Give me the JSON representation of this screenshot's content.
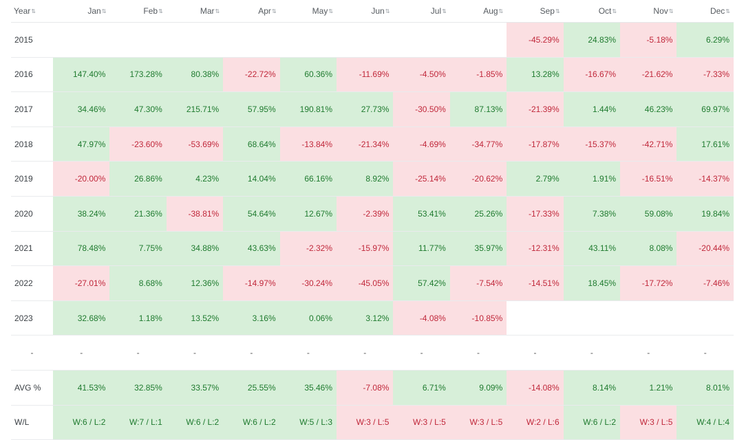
{
  "headers": [
    "Year",
    "Jan",
    "Feb",
    "Mar",
    "Apr",
    "May",
    "Jun",
    "Jul",
    "Aug",
    "Sep",
    "Oct",
    "Nov",
    "Dec"
  ],
  "sort_icon": "sort-icon",
  "colors": {
    "positive_bg": "#d7efd9",
    "positive_text": "#1e7a2e",
    "negative_bg": "#fbdfe2",
    "negative_text": "#c0273a"
  },
  "rows": [
    {
      "label": "2015",
      "cells": [
        "",
        "",
        "",
        "",
        "",
        "",
        "",
        "",
        "-45.29%",
        "24.83%",
        "-5.18%",
        "6.29%"
      ]
    },
    {
      "label": "2016",
      "cells": [
        "147.40%",
        "173.28%",
        "80.38%",
        "-22.72%",
        "60.36%",
        "-11.69%",
        "-4.50%",
        "-1.85%",
        "13.28%",
        "-16.67%",
        "-21.62%",
        "-7.33%"
      ]
    },
    {
      "label": "2017",
      "cells": [
        "34.46%",
        "47.30%",
        "215.71%",
        "57.95%",
        "190.81%",
        "27.73%",
        "-30.50%",
        "87.13%",
        "-21.39%",
        "1.44%",
        "46.23%",
        "69.97%"
      ]
    },
    {
      "label": "2018",
      "cells": [
        "47.97%",
        "-23.60%",
        "-53.69%",
        "68.64%",
        "-13.84%",
        "-21.34%",
        "-4.69%",
        "-34.77%",
        "-17.87%",
        "-15.37%",
        "-42.71%",
        "17.61%"
      ]
    },
    {
      "label": "2019",
      "cells": [
        "-20.00%",
        "26.86%",
        "4.23%",
        "14.04%",
        "66.16%",
        "8.92%",
        "-25.14%",
        "-20.62%",
        "2.79%",
        "1.91%",
        "-16.51%",
        "-14.37%"
      ]
    },
    {
      "label": "2020",
      "cells": [
        "38.24%",
        "21.36%",
        "-38.81%",
        "54.64%",
        "12.67%",
        "-2.39%",
        "53.41%",
        "25.26%",
        "-17.33%",
        "7.38%",
        "59.08%",
        "19.84%"
      ]
    },
    {
      "label": "2021",
      "cells": [
        "78.48%",
        "7.75%",
        "34.88%",
        "43.63%",
        "-2.32%",
        "-15.97%",
        "11.77%",
        "35.97%",
        "-12.31%",
        "43.11%",
        "8.08%",
        "-20.44%"
      ]
    },
    {
      "label": "2022",
      "cells": [
        "-27.01%",
        "8.68%",
        "12.36%",
        "-14.97%",
        "-30.24%",
        "-45.05%",
        "57.42%",
        "-7.54%",
        "-14.51%",
        "18.45%",
        "-17.72%",
        "-7.46%"
      ]
    },
    {
      "label": "2023",
      "cells": [
        "32.68%",
        "1.18%",
        "13.52%",
        "3.16%",
        "0.06%",
        "3.12%",
        "-4.08%",
        "-10.85%",
        "",
        "",
        "",
        ""
      ]
    },
    {
      "label": "-",
      "cells": [
        "-",
        "-",
        "-",
        "-",
        "-",
        "-",
        "-",
        "-",
        "-",
        "-",
        "-",
        "-"
      ]
    },
    {
      "label": "AVG %",
      "cells": [
        "41.53%",
        "32.85%",
        "33.57%",
        "25.55%",
        "35.46%",
        "-7.08%",
        "6.71%",
        "9.09%",
        "-14.08%",
        "8.14%",
        "1.21%",
        "8.01%"
      ]
    },
    {
      "label": "W/L",
      "cells": [
        "W:6 / L:2",
        "W:7 / L:1",
        "W:6 / L:2",
        "W:6 / L:2",
        "W:5 / L:3",
        "W:3 / L:5",
        "W:3 / L:5",
        "W:3 / L:5",
        "W:2 / L:6",
        "W:6 / L:2",
        "W:3 / L:5",
        "W:4 / L:4"
      ]
    }
  ]
}
